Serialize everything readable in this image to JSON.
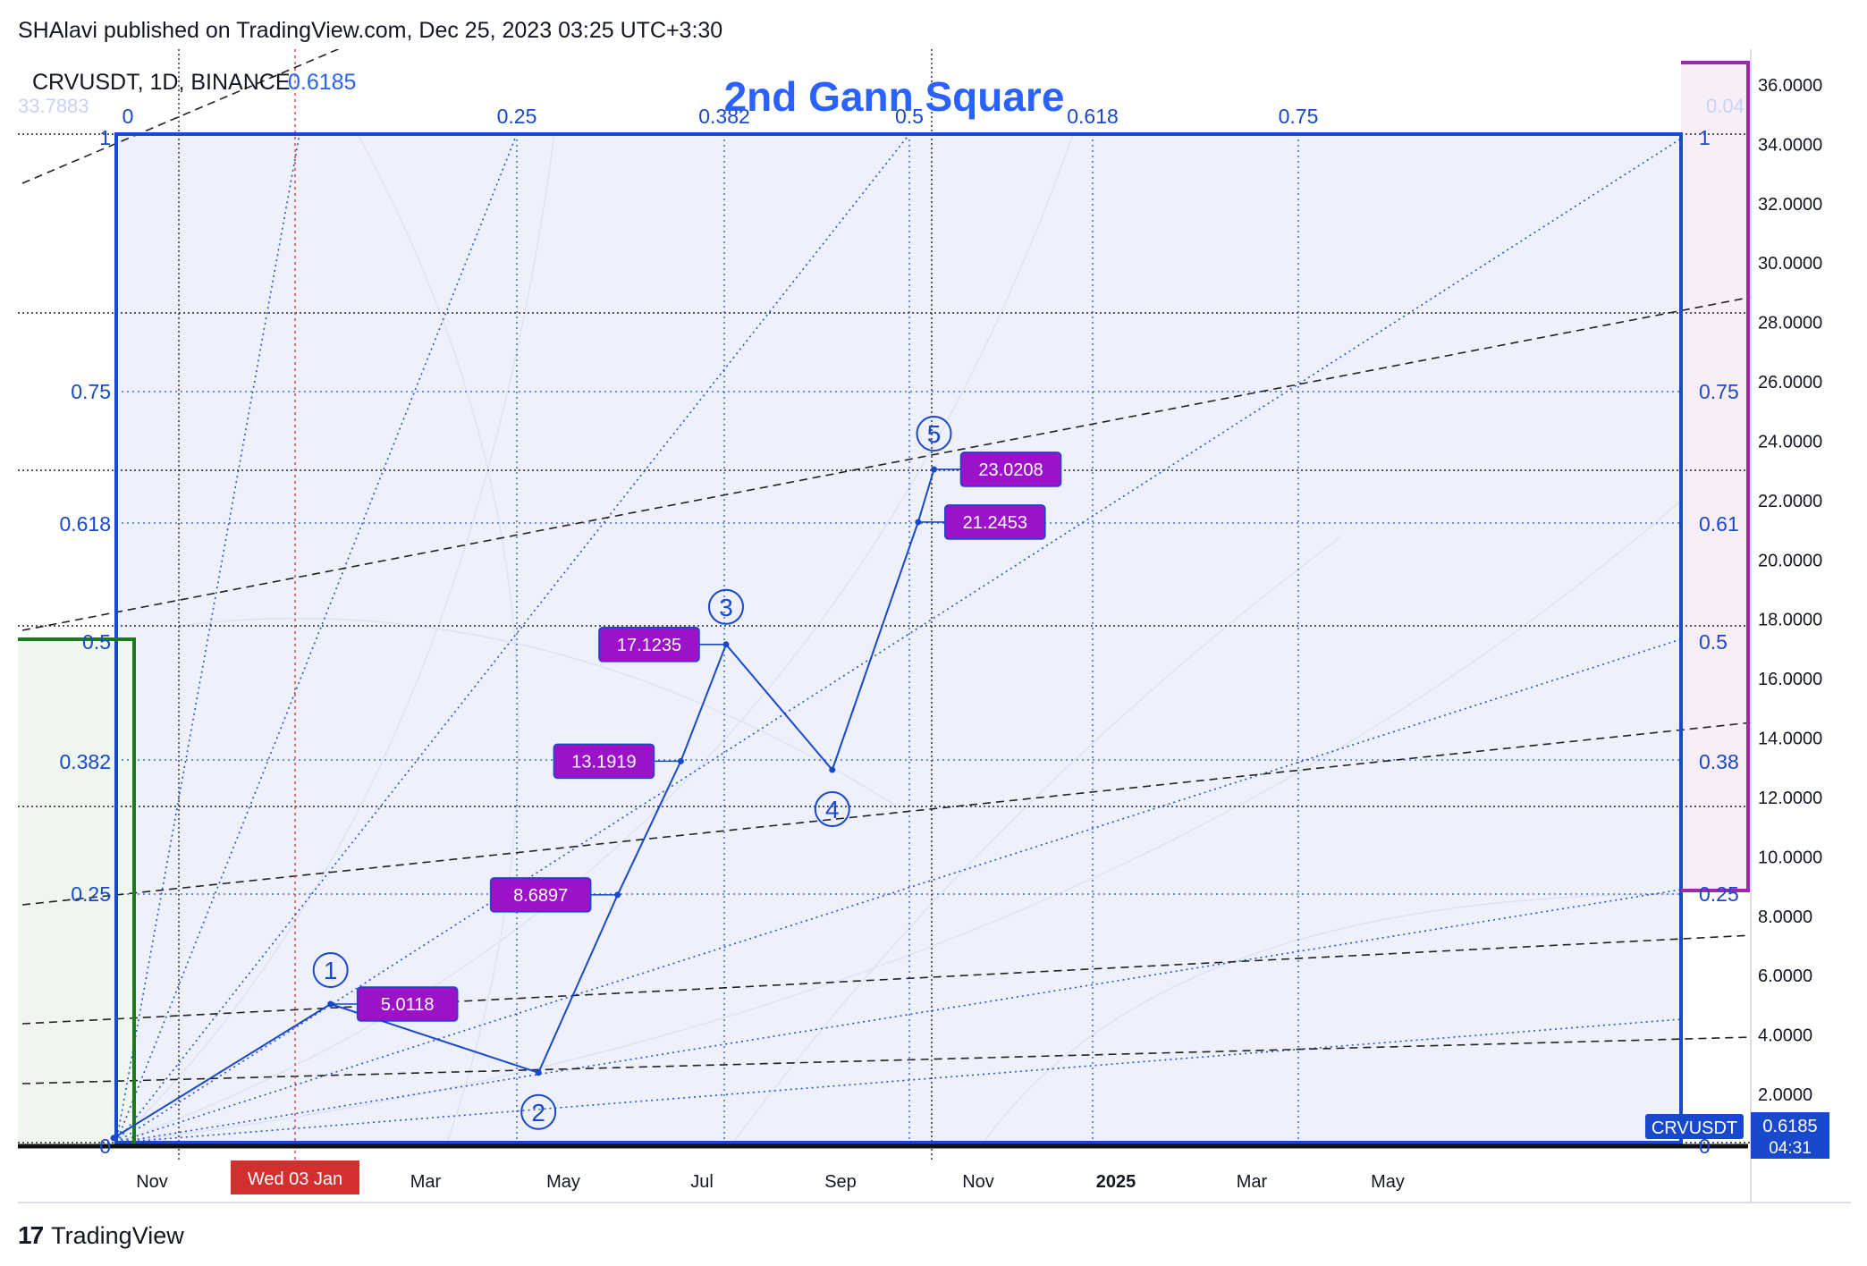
{
  "header": {
    "published_text": "SHAlavi published on TradingView.com, Dec 25, 2023 03:25 UTC+3:30"
  },
  "legend": {
    "symbol_text": "CRVUSDT, 1D, BINANCE",
    "last_value": "0.6185",
    "faded_left": "33.7883",
    "faded_right": "0.04"
  },
  "title": "2nd Gann Square",
  "footer": {
    "brand": "TradingView"
  },
  "colors": {
    "blue": "#1848cc",
    "purple": "#9c27b0",
    "green": "#1b7a1b",
    "label_bg": "#9c12c8",
    "accent_text": "#2962ff",
    "red_label": "#d32f2f"
  },
  "chart_data": {
    "type": "line",
    "title": "2nd Gann Square",
    "symbol": "CRVUSDT",
    "interval": "1D",
    "exchange": "BINANCE",
    "last_price": "0.6185",
    "countdown": "04:31",
    "ylim": [
      0,
      37
    ],
    "y_ticks": [
      "2.0000",
      "4.0000",
      "6.0000",
      "8.0000",
      "10.0000",
      "12.0000",
      "14.0000",
      "16.0000",
      "18.0000",
      "20.0000",
      "22.0000",
      "24.0000",
      "26.0000",
      "28.0000",
      "30.0000",
      "32.0000",
      "34.0000",
      "36.0000"
    ],
    "x_ticks": [
      "Nov",
      "Wed 03 Jan",
      "Mar",
      "May",
      "Jul",
      "Sep",
      "Nov",
      "2025",
      "Mar",
      "May"
    ],
    "crosshair_x_label": "Wed 03 Jan",
    "gann_top_levels": [
      "0",
      "0.25",
      "0.382",
      "0.5",
      "0.618",
      "0.75"
    ],
    "gann_left_levels": [
      "1",
      "0.75",
      "0.618",
      "0.5",
      "0.382",
      "0.25",
      "0"
    ],
    "gann_right_levels": [
      "1",
      "0.75",
      "0.61",
      "0.5",
      "0.38",
      "0.25",
      "0"
    ],
    "wave_points": [
      {
        "label": "",
        "date": "2023-10-15",
        "price": 0.5
      },
      {
        "label": "1",
        "date": "2024-01-19",
        "price": 5.0118
      },
      {
        "label": "2",
        "date": "2024-04-20",
        "price": 2.7
      },
      {
        "label": "",
        "date": "2024-05-25",
        "price": 8.6897
      },
      {
        "label": "",
        "date": "2024-06-22",
        "price": 13.1919
      },
      {
        "label": "3",
        "date": "2024-07-12",
        "price": 17.1235
      },
      {
        "label": "4",
        "date": "2024-08-28",
        "price": 12.9
      },
      {
        "label": "",
        "date": "2024-10-05",
        "price": 21.2453
      },
      {
        "label": "5",
        "date": "2024-10-12",
        "price": 23.0208
      }
    ],
    "price_labels": [
      "5.0118",
      "8.6897",
      "13.1919",
      "17.1235",
      "21.2453",
      "23.0208"
    ]
  }
}
